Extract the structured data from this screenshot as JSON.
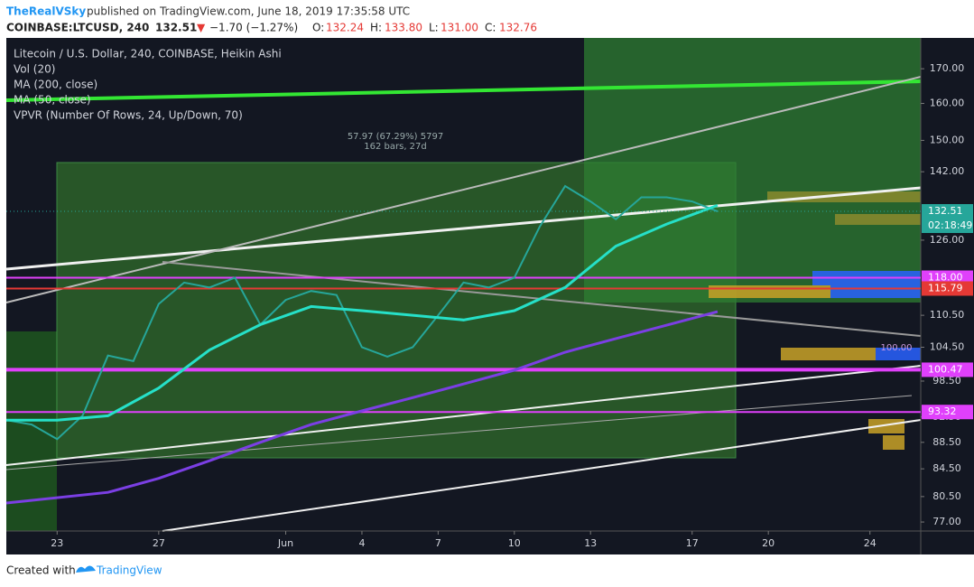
{
  "header": {
    "author": "TheRealVSky",
    "published": "published on TradingView.com, June 18, 2019 17:35:58 UTC",
    "symbol": "COINBASE:LTCUSD, 240",
    "last": "132.51",
    "arrow": "▼",
    "change": "−1.70 (−1.27%)",
    "open_label": "O:",
    "open": "132.24",
    "high_label": "H:",
    "high": "133.80",
    "low_label": "L:",
    "low": "131.00",
    "close_label": "C:",
    "close": "132.76"
  },
  "footer": {
    "text": "Created with",
    "brand": "TradingView"
  },
  "chart_data": {
    "type": "line",
    "log_scale": true,
    "xlim": [
      "2019-05-21",
      "2019-06-26"
    ],
    "ylim": [
      75.8,
      179.4
    ],
    "xticks": [
      {
        "value": "2019-05-23",
        "label": "23"
      },
      {
        "value": "2019-05-27",
        "label": "27"
      },
      {
        "value": "2019-06-01",
        "label": "Jun"
      },
      {
        "value": "2019-06-04",
        "label": "4"
      },
      {
        "value": "2019-06-07",
        "label": "7"
      },
      {
        "value": "2019-06-10",
        "label": "10"
      },
      {
        "value": "2019-06-13",
        "label": "13"
      },
      {
        "value": "2019-06-17",
        "label": "17"
      },
      {
        "value": "2019-06-20",
        "label": "20"
      },
      {
        "value": "2019-06-24",
        "label": "24"
      }
    ],
    "yticks": [
      {
        "value": 170,
        "label": "170.00"
      },
      {
        "value": 160,
        "label": "160.00"
      },
      {
        "value": 150,
        "label": "150.00"
      },
      {
        "value": 142,
        "label": "142.00"
      },
      {
        "value": 126,
        "label": "126.00"
      },
      {
        "value": 110.5,
        "label": "110.50"
      },
      {
        "value": 104.5,
        "label": "104.50"
      },
      {
        "value": 98.5,
        "label": "98.50"
      },
      {
        "value": 92.5,
        "label": "92.50"
      },
      {
        "value": 88.5,
        "label": "88.50"
      },
      {
        "value": 84.5,
        "label": "84.50"
      },
      {
        "value": 80.5,
        "label": "80.50"
      },
      {
        "value": 77,
        "label": "77.00"
      }
    ],
    "series": [
      {
        "name": "Litecoin / U.S. Dollar, 240, COINBASE, Heikin Ashi",
        "color": "#26a69a",
        "x": [
          "2019-05-21",
          "2019-05-22",
          "2019-05-23",
          "2019-05-24",
          "2019-05-25",
          "2019-05-26",
          "2019-05-27",
          "2019-05-28",
          "2019-05-29",
          "2019-05-30",
          "2019-05-31",
          "2019-06-01",
          "2019-06-02",
          "2019-06-03",
          "2019-06-04",
          "2019-06-05",
          "2019-06-06",
          "2019-06-07",
          "2019-06-08",
          "2019-06-09",
          "2019-06-10",
          "2019-06-11",
          "2019-06-12",
          "2019-06-13",
          "2019-06-14",
          "2019-06-15",
          "2019-06-16",
          "2019-06-17",
          "2019-06-18"
        ],
        "values": [
          92,
          91.3,
          89,
          92.7,
          103,
          102,
          112.7,
          117,
          116,
          118,
          108.7,
          113.5,
          115.3,
          114.5,
          104.5,
          102.8,
          104.5,
          110.5,
          117,
          116,
          118,
          129,
          138.5,
          134.8,
          130.7,
          135.8,
          135.8,
          134.8,
          132.5
        ]
      },
      {
        "name": "MA (200, close)",
        "color": "#7b3fe4",
        "x": [
          "2019-05-21",
          "2019-05-25",
          "2019-05-27",
          "2019-05-29",
          "2019-05-31",
          "2019-06-02",
          "2019-06-04",
          "2019-06-06",
          "2019-06-08",
          "2019-06-10",
          "2019-06-12",
          "2019-06-14",
          "2019-06-16",
          "2019-06-18"
        ],
        "values": [
          79.6,
          81.1,
          83.1,
          85.7,
          88.5,
          91.3,
          93.5,
          95.7,
          98,
          100.4,
          103.6,
          106.1,
          108.6,
          111.2
        ]
      },
      {
        "name": "MA (50, close)",
        "color": "#26e0c8",
        "x": [
          "2019-05-21",
          "2019-05-23",
          "2019-05-25",
          "2019-05-27",
          "2019-05-29",
          "2019-05-31",
          "2019-06-02",
          "2019-06-04",
          "2019-06-06",
          "2019-06-08",
          "2019-06-10",
          "2019-06-12",
          "2019-06-14",
          "2019-06-16",
          "2019-06-18"
        ],
        "values": [
          92,
          92,
          92.7,
          97.3,
          104,
          108.7,
          112.2,
          111.4,
          110.5,
          109.6,
          111.4,
          116,
          124.7,
          129.6,
          133.9
        ]
      }
    ],
    "indicators": [
      "Vol (20)",
      "VPVR (Number Of Rows, 24, Up/Down, 70)"
    ],
    "levels": [
      {
        "value": 118,
        "label": "118.00",
        "color": "#e040fb"
      },
      {
        "value": 115.79,
        "color": "#e53935"
      },
      {
        "value": 100.47,
        "color": "#e040fb"
      },
      {
        "value": 93.32,
        "color": "#e040fb"
      }
    ],
    "current_price": {
      "value": 132.51,
      "timer": "02:18:49",
      "color": "#26a69a"
    },
    "annotations": [
      "57.97 (67.29%) 5797",
      "162 bars, 27d",
      "100.00"
    ]
  }
}
